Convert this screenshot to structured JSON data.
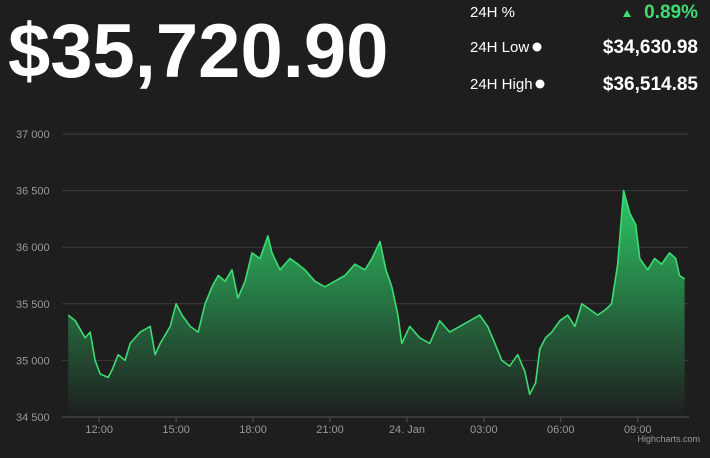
{
  "header": {
    "price": "$35,720.90",
    "stats": [
      {
        "label": "24H %",
        "value": "0.89%"
      },
      {
        "label": "24H Low",
        "value": "$34,630.98"
      },
      {
        "label": "24H High",
        "value": "$36,514.85"
      }
    ]
  },
  "chart_data": {
    "type": "area",
    "color": "#3ddc73",
    "credits": "Highcharts.com",
    "grid": true,
    "x": [
      10.79,
      11.07,
      11.45,
      11.65,
      11.84,
      12.04,
      12.35,
      12.51,
      12.74,
      13.01,
      13.21,
      13.6,
      13.99,
      14.18,
      14.38,
      14.77,
      15,
      15.23,
      15.55,
      15.86,
      16.13,
      16.4,
      16.64,
      16.91,
      17.18,
      17.41,
      17.69,
      17.96,
      18.27,
      18.58,
      18.74,
      19.05,
      19.44,
      19.75,
      20.02,
      20.41,
      20.8,
      21.19,
      21.58,
      21.97,
      22.36,
      22.64,
      22.95,
      23.18,
      23.41,
      23.65,
      23.8,
      24.11,
      24.5,
      24.89,
      25.28,
      25.67,
      26.06,
      26.45,
      26.84,
      27.15,
      27.43,
      27.7,
      28.01,
      28.32,
      28.6,
      28.79,
      29.02,
      29.18,
      29.41,
      29.65,
      29.96,
      30.27,
      30.55,
      30.82,
      31.13,
      31.44,
      31.75,
      31.98,
      32.22,
      32.45,
      32.69,
      32.92,
      33.08,
      33.39,
      33.66,
      33.93,
      34.24,
      34.48,
      34.63,
      34.83
    ],
    "values": [
      35400,
      35350,
      35200,
      35250,
      35000,
      34880,
      34850,
      34920,
      35050,
      35000,
      35150,
      35250,
      35300,
      35050,
      35150,
      35300,
      35500,
      35400,
      35300,
      35250,
      35500,
      35650,
      35750,
      35700,
      35800,
      35550,
      35700,
      35950,
      35900,
      36100,
      35950,
      35800,
      35900,
      35850,
      35800,
      35700,
      35650,
      35700,
      35750,
      35850,
      35800,
      35900,
      36050,
      35800,
      35650,
      35400,
      35150,
      35300,
      35200,
      35150,
      35350,
      35250,
      35300,
      35350,
      35400,
      35300,
      35150,
      35000,
      34950,
      35050,
      34900,
      34700,
      34800,
      35100,
      35200,
      35250,
      35350,
      35400,
      35300,
      35500,
      35450,
      35400,
      35450,
      35500,
      35850,
      36500,
      36300,
      36200,
      35900,
      35800,
      35900,
      35850,
      35950,
      35900,
      35750,
      35720
    ],
    "xlim": [
      10.55,
      35.0
    ],
    "ylim": [
      34500,
      37000
    ],
    "xticks": [
      {
        "value": 12,
        "label": "12:00"
      },
      {
        "value": 15,
        "label": "15:00"
      },
      {
        "value": 18,
        "label": "18:00"
      },
      {
        "value": 21,
        "label": "21:00"
      },
      {
        "value": 24,
        "label": "24. Jan"
      },
      {
        "value": 27,
        "label": "03:00"
      },
      {
        "value": 30,
        "label": "06:00"
      },
      {
        "value": 33,
        "label": "09:00"
      }
    ],
    "yticks": [
      {
        "value": 34500,
        "label": "34 500"
      },
      {
        "value": 35000,
        "label": "35 000"
      },
      {
        "value": 35500,
        "label": "35 500"
      },
      {
        "value": 36000,
        "label": "36 000"
      },
      {
        "value": 36500,
        "label": "36 500"
      },
      {
        "value": 37000,
        "label": "37 000"
      }
    ]
  }
}
